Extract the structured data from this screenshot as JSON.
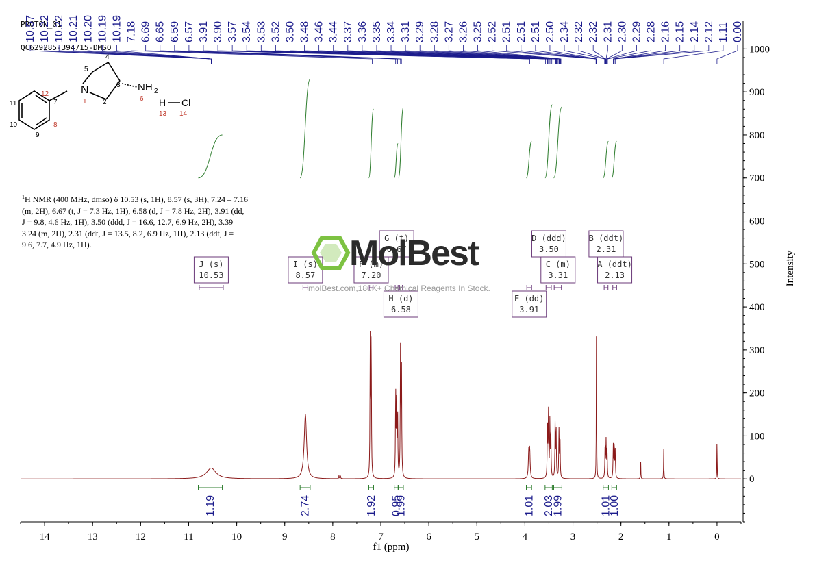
{
  "header": {
    "line1": "PROTON_01",
    "line2": "QC629285-394715-DMSO"
  },
  "description": {
    "prefix_sup": "1",
    "text": "H NMR (400 MHz, dmso) δ 10.53 (s, 1H), 8.57 (s, 3H), 7.24 – 7.16 (m, 2H), 6.67 (t, J = 7.3 Hz, 1H), 6.58 (d, J = 7.8 Hz, 2H), 3.91 (dd, J = 9.8, 4.6 Hz, 1H), 3.50 (ddd, J = 16.6, 12.7, 6.9 Hz, 2H), 3.39 – 3.24 (m, 2H), 2.31 (ddt, J = 13.5, 8.2, 6.9 Hz, 1H), 2.13 (ddt, J = 9.6, 7.7, 4.9 Hz, 1H)."
  },
  "watermark": {
    "brand": "MolBest",
    "tagline": "molBest.com,180K+ Chemical Reagents In Stock.",
    "color": "#7dc242"
  },
  "molecule": {
    "atoms": [
      "N",
      "NH",
      "2",
      "H",
      "Cl"
    ],
    "atom_numbers": [
      "1",
      "2",
      "3",
      "4",
      "5",
      "6",
      "7",
      "8",
      "9",
      "10",
      "11",
      "12",
      "13",
      "14"
    ]
  },
  "chart_data": {
    "type": "line",
    "xlabel": "f1 (ppm)",
    "ylabel": "Intensity",
    "xlim": [
      14.5,
      -0.5
    ],
    "ylim": [
      -100,
      1050
    ],
    "x_ticks": [
      14,
      13,
      12,
      11,
      10,
      9,
      8,
      7,
      6,
      5,
      4,
      3,
      2,
      1,
      0
    ],
    "y_ticks": [
      0,
      100,
      200,
      300,
      400,
      500,
      600,
      700,
      800,
      900,
      1000
    ],
    "colors": {
      "spectrum": "#8b1a1a",
      "peak_labels": "#1c1c8c",
      "integral": "#2e7d2e",
      "multiplet": "#6b3a7a"
    },
    "peak_labels": [
      "10.57",
      "10.22",
      "10.22",
      "10.21",
      "10.20",
      "10.19",
      "10.19",
      "7.18",
      "6.69",
      "6.65",
      "6.59",
      "6.57",
      "3.91",
      "3.90",
      "3.57",
      "3.54",
      "3.53",
      "3.52",
      "3.50",
      "3.48",
      "3.46",
      "3.44",
      "3.37",
      "3.36",
      "3.35",
      "3.34",
      "3.31",
      "3.29",
      "3.28",
      "3.27",
      "3.26",
      "3.25",
      "2.52",
      "2.51",
      "2.51",
      "2.51",
      "2.50",
      "2.34",
      "2.32",
      "2.32",
      "2.31",
      "2.30",
      "2.29",
      "2.28",
      "2.16",
      "2.15",
      "2.14",
      "2.12",
      "1.11",
      "0.00"
    ],
    "peaks": [
      {
        "ppm": 10.53,
        "height": 25,
        "width": 0.12
      },
      {
        "ppm": 8.57,
        "height": 150,
        "width": 0.03
      },
      {
        "ppm": 7.87,
        "height": 8,
        "width": 0.005
      },
      {
        "ppm": 7.84,
        "height": 8,
        "width": 0.005
      },
      {
        "ppm": 7.22,
        "height": 320,
        "width": 0.006
      },
      {
        "ppm": 7.2,
        "height": 330,
        "width": 0.006
      },
      {
        "ppm": 6.69,
        "height": 200,
        "width": 0.006
      },
      {
        "ppm": 6.67,
        "height": 170,
        "width": 0.006
      },
      {
        "ppm": 6.65,
        "height": 150,
        "width": 0.006
      },
      {
        "ppm": 6.59,
        "height": 290,
        "width": 0.006
      },
      {
        "ppm": 6.57,
        "height": 300,
        "width": 0.006
      },
      {
        "ppm": 3.92,
        "height": 60,
        "width": 0.01
      },
      {
        "ppm": 3.9,
        "height": 65,
        "width": 0.01
      },
      {
        "ppm": 3.53,
        "height": 140,
        "width": 0.006
      },
      {
        "ppm": 3.51,
        "height": 150,
        "width": 0.006
      },
      {
        "ppm": 3.48,
        "height": 130,
        "width": 0.006
      },
      {
        "ppm": 3.46,
        "height": 110,
        "width": 0.006
      },
      {
        "ppm": 3.37,
        "height": 130,
        "width": 0.006
      },
      {
        "ppm": 3.35,
        "height": 120,
        "width": 0.006
      },
      {
        "ppm": 3.29,
        "height": 110,
        "width": 0.006
      },
      {
        "ppm": 3.27,
        "height": 100,
        "width": 0.006
      },
      {
        "ppm": 2.51,
        "height": 380,
        "width": 0.004
      },
      {
        "ppm": 2.33,
        "height": 80,
        "width": 0.006
      },
      {
        "ppm": 2.31,
        "height": 85,
        "width": 0.006
      },
      {
        "ppm": 2.29,
        "height": 70,
        "width": 0.006
      },
      {
        "ppm": 2.16,
        "height": 75,
        "width": 0.006
      },
      {
        "ppm": 2.14,
        "height": 80,
        "width": 0.006
      },
      {
        "ppm": 2.12,
        "height": 65,
        "width": 0.006
      },
      {
        "ppm": 1.59,
        "height": 45,
        "width": 0.004
      },
      {
        "ppm": 1.11,
        "height": 70,
        "width": 0.004
      },
      {
        "ppm": 0.0,
        "height": 115,
        "width": 0.003
      }
    ],
    "integrals": [
      {
        "from": 10.8,
        "to": 10.3,
        "value": "1.19",
        "y0": 700,
        "y1": 800
      },
      {
        "from": 8.68,
        "to": 8.47,
        "value": "2.74",
        "y0": 700,
        "y1": 930
      },
      {
        "from": 7.25,
        "to": 7.15,
        "value": "1.92",
        "y0": 700,
        "y1": 860
      },
      {
        "from": 6.72,
        "to": 6.64,
        "value": "0.95",
        "y0": 700,
        "y1": 780
      },
      {
        "from": 6.63,
        "to": 6.53,
        "value": "1.99",
        "y0": 700,
        "y1": 865
      },
      {
        "from": 3.97,
        "to": 3.86,
        "value": "1.01",
        "y0": 700,
        "y1": 785
      },
      {
        "from": 3.58,
        "to": 3.43,
        "value": "2.03",
        "y0": 700,
        "y1": 870
      },
      {
        "from": 3.4,
        "to": 3.23,
        "value": "1.99",
        "y0": 700,
        "y1": 865
      },
      {
        "from": 2.37,
        "to": 2.26,
        "value": "1.01",
        "y0": 700,
        "y1": 785
      },
      {
        "from": 2.19,
        "to": 2.09,
        "value": "1.00",
        "y0": 700,
        "y1": 785
      }
    ],
    "multiplets": [
      {
        "letter": "J",
        "mult": "s",
        "ppm": "10.53",
        "x": 10.53,
        "range": [
          10.78,
          10.28
        ],
        "row": 1
      },
      {
        "letter": "I",
        "mult": "s",
        "ppm": "8.57",
        "x": 8.57,
        "range": [
          8.62,
          8.52
        ],
        "row": 1
      },
      {
        "letter": "F",
        "mult": "m",
        "ppm": "7.20",
        "x": 7.2,
        "range": [
          7.24,
          7.16
        ],
        "row": 1
      },
      {
        "letter": "G",
        "mult": "t",
        "ppm": "6.67",
        "x": 6.67,
        "range": [
          6.7,
          6.64
        ],
        "row": 0
      },
      {
        "letter": "H",
        "mult": "d",
        "ppm": "6.58",
        "x": 6.58,
        "range": [
          6.61,
          6.55
        ],
        "row": 2
      },
      {
        "letter": "E",
        "mult": "dd",
        "ppm": "3.91",
        "x": 3.91,
        "range": [
          3.96,
          3.86
        ],
        "row": 2
      },
      {
        "letter": "D",
        "mult": "ddd",
        "ppm": "3.50",
        "x": 3.5,
        "range": [
          3.56,
          3.45
        ],
        "row": 0
      },
      {
        "letter": "C",
        "mult": "m",
        "ppm": "3.31",
        "x": 3.31,
        "range": [
          3.39,
          3.24
        ],
        "row": 1
      },
      {
        "letter": "B",
        "mult": "ddt",
        "ppm": "2.31",
        "x": 2.31,
        "range": [
          2.35,
          2.27
        ],
        "row": 0
      },
      {
        "letter": "A",
        "mult": "ddt",
        "ppm": "2.13",
        "x": 2.13,
        "range": [
          2.17,
          2.09
        ],
        "row": 1
      }
    ]
  }
}
